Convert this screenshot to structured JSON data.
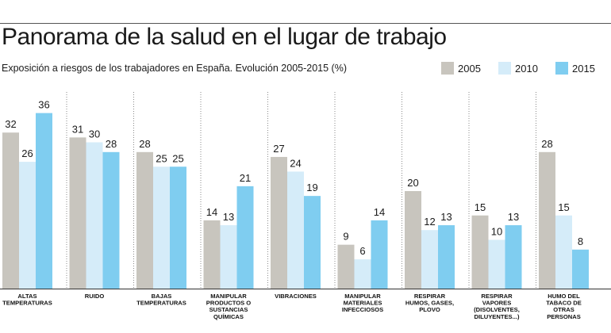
{
  "header": {
    "title": "Panorama de la salud en el lugar de trabajo",
    "subtitle": "Exposición a riesgos de los trabajadores en España. Evolución 2005-2015 (%)"
  },
  "chart_data": {
    "type": "bar",
    "title": "Panorama de la salud en el lugar de trabajo",
    "subtitle": "Exposición a riesgos de los trabajadores en España. Evolución 2005-2015 (%)",
    "xlabel": "",
    "ylabel": "",
    "ylim": [
      0,
      40
    ],
    "grid": false,
    "legend": "top-right",
    "categories": [
      [
        "ALTAS",
        "TEMPERATURAS"
      ],
      [
        "RUIDO"
      ],
      [
        "BAJAS",
        "TEMPERATURAS"
      ],
      [
        "MANIPULAR",
        "PRODUCTOS O",
        "SUSTANCIAS",
        "QUÍMICAS"
      ],
      [
        "VIBRACIONES"
      ],
      [
        "MANIPULAR",
        "MATERIALES",
        "INFECCIOSOS"
      ],
      [
        "RESPIRAR",
        "HUMOS, GASES,",
        "PLOVO"
      ],
      [
        "RESPIRAR",
        "VAPORES",
        "(DISOLVENTES,",
        "DILUYENTES...)"
      ],
      [
        "HUMO DEL",
        "TABACO DE",
        "OTRAS",
        "PERSONAS"
      ]
    ],
    "series": [
      {
        "name": "2005",
        "color": "#c8c5be",
        "values": [
          32,
          31,
          28,
          14,
          27,
          9,
          20,
          15,
          28
        ]
      },
      {
        "name": "2010",
        "color": "#d5ecf9",
        "values": [
          26,
          30,
          25,
          13,
          24,
          6,
          12,
          10,
          15
        ]
      },
      {
        "name": "2015",
        "color": "#7fcdf0",
        "values": [
          36,
          28,
          25,
          21,
          19,
          14,
          13,
          13,
          8
        ]
      }
    ]
  }
}
